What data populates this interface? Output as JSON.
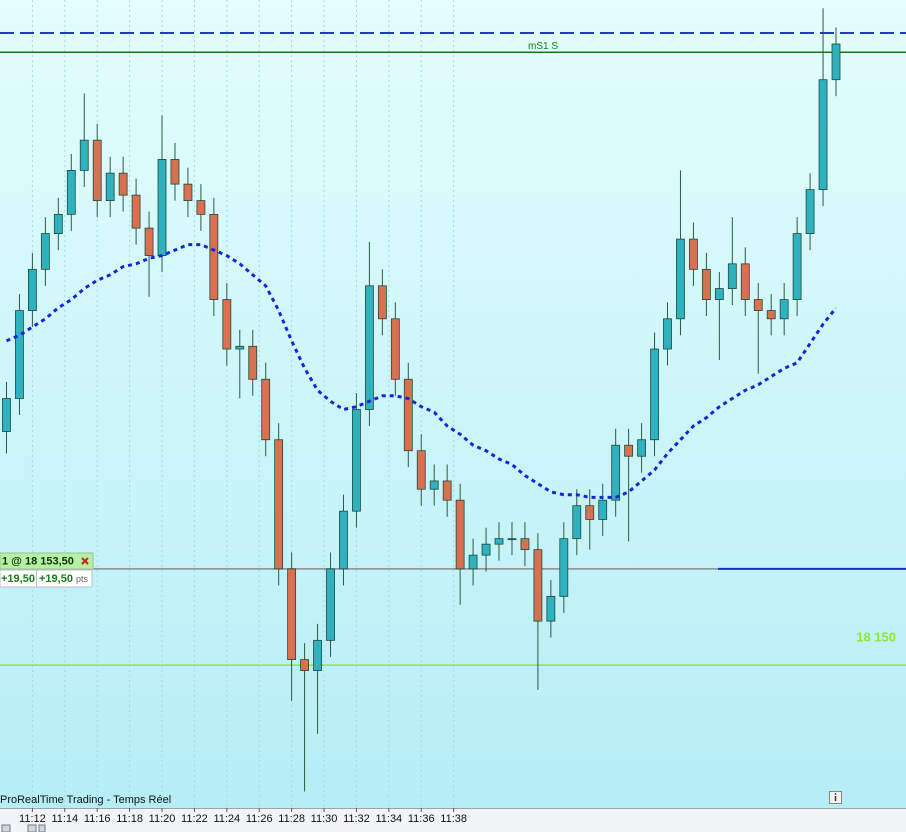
{
  "chart_data": {
    "type": "candlestick",
    "footer": "ProRealTime Trading - Temps Réel",
    "xlim": [
      -0.5,
      69.4
    ],
    "xticks": [
      {
        "value": 2,
        "label": "11:12"
      },
      {
        "value": 4.5,
        "label": "11:14"
      },
      {
        "value": 7,
        "label": "11:16"
      },
      {
        "value": 9.5,
        "label": "11:18"
      },
      {
        "value": 12,
        "label": "11:20"
      },
      {
        "value": 14.5,
        "label": "11:22"
      },
      {
        "value": 17,
        "label": "11:24"
      },
      {
        "value": 19.5,
        "label": "11:26"
      },
      {
        "value": 22,
        "label": "11:28"
      },
      {
        "value": 24.5,
        "label": "11:30"
      },
      {
        "value": 27,
        "label": "11:32"
      },
      {
        "value": 29.5,
        "label": "11:34"
      },
      {
        "value": 32,
        "label": "11:36"
      },
      {
        "value": 34.5,
        "label": "11:38"
      }
    ],
    "ylim": [
      18144.8,
      18174.2
    ],
    "grid": true,
    "up_color": "#2fb1bf",
    "down_color": "#d9704f",
    "open": [
      18158.5,
      18159.7,
      18162.9,
      18164.4,
      18165.7,
      18166.4,
      18168.0,
      18169.1,
      18166.9,
      18167.9,
      18167.1,
      18165.9,
      18164.9,
      18168.4,
      18167.5,
      18166.9,
      18166.4,
      18163.3,
      18161.5,
      18161.6,
      18160.4,
      18158.2,
      18153.5,
      18150.2,
      18149.8,
      18150.9,
      18153.5,
      18155.6,
      18159.3,
      18163.8,
      18162.6,
      18160.4,
      18157.8,
      18156.4,
      18156.7,
      18156.0,
      18153.5,
      18154.0,
      18154.4,
      18154.6,
      18154.6,
      18154.2,
      18151.6,
      18152.5,
      18154.6,
      18155.8,
      18155.3,
      18156.0,
      18158.0,
      18157.6,
      18158.2,
      18161.5,
      18162.6,
      18165.5,
      18164.4,
      18163.3,
      18163.7,
      18164.6,
      18163.3,
      18162.9,
      18162.6,
      18163.3,
      18165.7,
      18167.3,
      18171.3
    ],
    "high": [
      18160.3,
      18163.5,
      18165.0,
      18166.3,
      18167.0,
      18168.6,
      18170.8,
      18169.7,
      18168.5,
      18168.5,
      18167.7,
      18166.5,
      18170.0,
      18169.0,
      18168.1,
      18167.5,
      18167.0,
      18163.9,
      18162.2,
      18162.2,
      18161.0,
      18158.8,
      18154.1,
      18150.8,
      18151.5,
      18154.1,
      18156.2,
      18159.9,
      18165.4,
      18164.4,
      18163.2,
      18161.0,
      18158.4,
      18157.3,
      18157.3,
      18156.6,
      18154.6,
      18155.0,
      18155.2,
      18155.2,
      18155.2,
      18154.8,
      18153.1,
      18155.2,
      18156.4,
      18156.4,
      18156.6,
      18158.6,
      18158.6,
      18158.8,
      18162.1,
      18163.2,
      18168.0,
      18166.1,
      18165.0,
      18164.3,
      18166.3,
      18165.2,
      18163.9,
      18163.5,
      18163.9,
      18166.3,
      18167.9,
      18173.9,
      18173.2
    ],
    "low": [
      18157.7,
      18159.1,
      18162.3,
      18163.8,
      18165.1,
      18165.8,
      18167.4,
      18166.3,
      18166.3,
      18166.5,
      18165.3,
      18163.4,
      18164.3,
      18166.9,
      18166.3,
      18165.8,
      18162.7,
      18160.9,
      18159.7,
      18159.8,
      18157.6,
      18152.9,
      18148.7,
      18145.4,
      18147.5,
      18150.3,
      18152.9,
      18155.0,
      18158.7,
      18162.0,
      18159.8,
      18157.2,
      18155.8,
      18155.8,
      18155.4,
      18152.2,
      18152.9,
      18153.4,
      18153.8,
      18154.0,
      18153.6,
      18149.1,
      18151.0,
      18151.9,
      18154.0,
      18154.2,
      18154.7,
      18155.4,
      18154.5,
      18157.0,
      18157.6,
      18160.9,
      18162.0,
      18163.8,
      18162.7,
      18161.1,
      18163.1,
      18162.7,
      18160.6,
      18162.0,
      18162.0,
      18162.7,
      18165.1,
      18166.7,
      18170.7
    ],
    "close": [
      18159.7,
      18162.9,
      18164.4,
      18165.7,
      18166.4,
      18168.0,
      18169.1,
      18166.9,
      18167.9,
      18167.1,
      18165.9,
      18164.9,
      18168.4,
      18167.5,
      18166.9,
      18166.4,
      18163.3,
      18161.5,
      18161.6,
      18160.4,
      18158.2,
      18153.5,
      18150.2,
      18149.8,
      18150.9,
      18153.5,
      18155.6,
      18159.3,
      18163.8,
      18162.6,
      18160.4,
      18157.8,
      18156.4,
      18156.7,
      18156.0,
      18153.5,
      18154.0,
      18154.4,
      18154.6,
      18154.6,
      18154.2,
      18151.6,
      18152.5,
      18154.6,
      18155.8,
      18155.3,
      18156.0,
      18158.0,
      18157.6,
      18158.2,
      18161.5,
      18162.6,
      18165.5,
      18164.4,
      18163.3,
      18163.7,
      18164.6,
      18163.3,
      18162.9,
      18162.6,
      18163.3,
      18165.7,
      18167.3,
      18171.3,
      18172.6
    ],
    "moving_average": {
      "color": "#1028d8",
      "values": [
        18161.8,
        18162.0,
        18162.3,
        18162.6,
        18163.0,
        18163.3,
        18163.7,
        18164.0,
        18164.2,
        18164.5,
        18164.6,
        18164.8,
        18164.9,
        18165.1,
        18165.3,
        18165.3,
        18165.1,
        18164.9,
        18164.6,
        18164.2,
        18163.8,
        18162.9,
        18161.8,
        18160.8,
        18160.0,
        18159.6,
        18159.3,
        18159.4,
        18159.6,
        18159.8,
        18159.8,
        18159.7,
        18159.4,
        18159.2,
        18158.7,
        18158.4,
        18158.0,
        18157.8,
        18157.5,
        18157.3,
        18156.9,
        18156.6,
        18156.3,
        18156.2,
        18156.2,
        18156.1,
        18156.1,
        18156.1,
        18156.3,
        18156.7,
        18157.1,
        18157.7,
        18158.2,
        18158.7,
        18159.0,
        18159.4,
        18159.7,
        18160.0,
        18160.2,
        18160.5,
        18160.8,
        18161.0,
        18161.7,
        18162.4,
        18163.0
      ]
    },
    "levels": [
      {
        "value": 18173.0,
        "color": "#2036c8",
        "style": "dashed"
      },
      {
        "value": 18172.3,
        "color": "#137a13",
        "style": "solid",
        "label": "mS1 S"
      },
      {
        "value": 18153.5,
        "color": "#8c8c8c",
        "style": "solid"
      },
      {
        "value": 18150.0,
        "color": "#8ee83a",
        "style": "solid",
        "label": "18 150"
      }
    ],
    "position": {
      "label": "1 @ 18 153,50",
      "gain": "+19,50",
      "gain_points": "+19,50",
      "unit": "pts"
    }
  }
}
